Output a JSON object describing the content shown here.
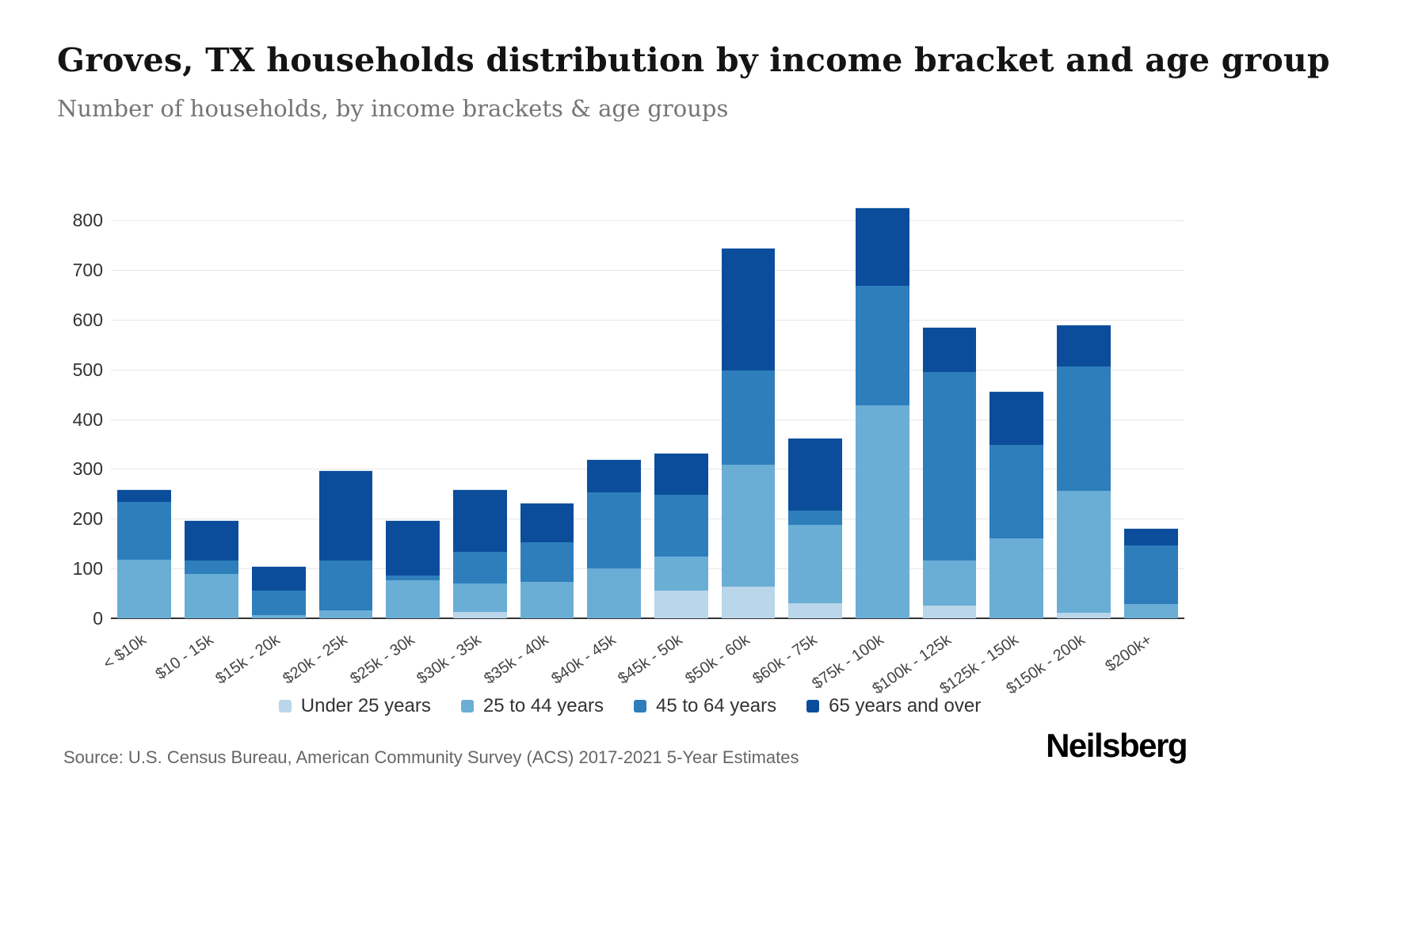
{
  "header": {
    "title": "Groves, TX households distribution by income bracket and age group",
    "subtitle": "Number of households, by income brackets & age groups"
  },
  "source": "Source: U.S. Census Bureau, American Community Survey (ACS) 2017-2021 5-Year Estimates",
  "brand": "Neilsberg",
  "chart_data": {
    "type": "bar",
    "stacked": true,
    "title": "Groves, TX households distribution by income bracket and age group",
    "xlabel": "",
    "ylabel": "",
    "categories": [
      "< $10k",
      "$10 - 15k",
      "$15k - 20k",
      "$20k - 25k",
      "$25k - 30k",
      "$30k - 35k",
      "$35k - 40k",
      "$40k - 45k",
      "$45k - 50k",
      "$50k - 60k",
      "$60k - 75k",
      "$75k - 100k",
      "$100k - 125k",
      "$125k - 150k",
      "$150k - 200k",
      "$200k+"
    ],
    "series": [
      {
        "name": "Under 25 years",
        "color": "#b9d6ea",
        "values": [
          0,
          0,
          0,
          0,
          0,
          15,
          0,
          0,
          57,
          65,
          32,
          0,
          27,
          0,
          12,
          0
        ]
      },
      {
        "name": "25 to 44 years",
        "color": "#6aaed6",
        "values": [
          120,
          90,
          8,
          18,
          78,
          57,
          75,
          102,
          68,
          245,
          158,
          430,
          91,
          162,
          246,
          30
        ]
      },
      {
        "name": "45 to 64 years",
        "color": "#2e7ebc",
        "values": [
          115,
          28,
          49,
          99,
          10,
          63,
          80,
          153,
          125,
          190,
          28,
          240,
          379,
          188,
          250,
          118
        ]
      },
      {
        "name": "65 years and over",
        "color": "#0b4d9b",
        "values": [
          25,
          80,
          48,
          180,
          110,
          125,
          77,
          65,
          82,
          245,
          144,
          155,
          88,
          107,
          82,
          34
        ]
      }
    ],
    "ylim": [
      0,
      840
    ],
    "yticks": [
      0,
      100,
      200,
      300,
      400,
      500,
      600,
      700,
      800
    ],
    "grid": true,
    "legend_position": "bottom"
  }
}
